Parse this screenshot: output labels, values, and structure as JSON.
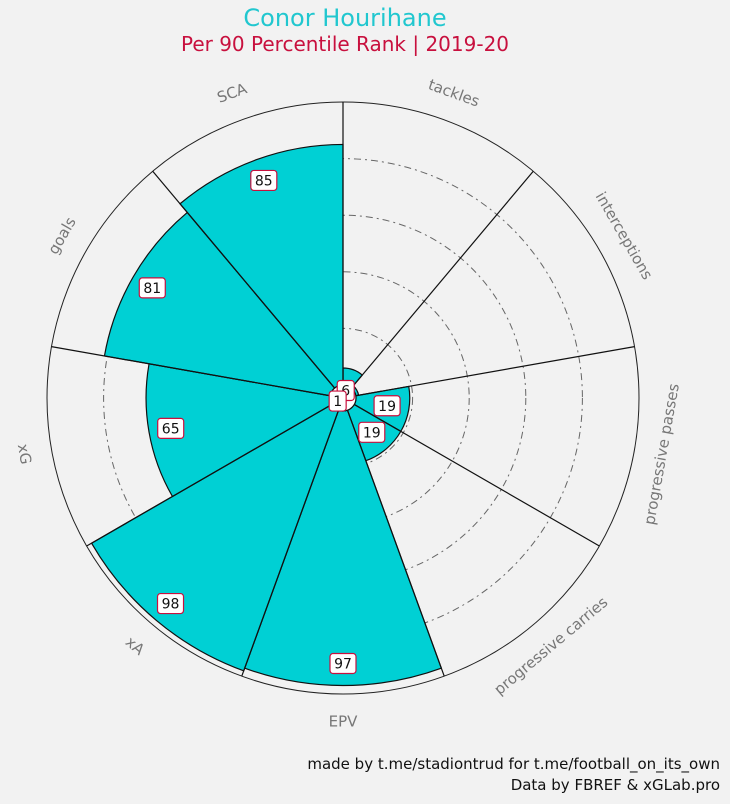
{
  "title": "Conor Hourihane",
  "subtitle": "Per 90 Percentile Rank | 2019-20",
  "credits": {
    "line1": "made by t.me/stadiontrud for t.me/football_on_its_own",
    "line2": "Data by FBREF & xGLab.pro"
  },
  "colors": {
    "bar": "#00d0d4",
    "label_border": "#c8103e",
    "title": "#21c7cf",
    "subtitle": "#c8103e",
    "background": "#f2f2f2"
  },
  "chart_data": {
    "type": "polar-bar",
    "rlim": [
      0,
      100
    ],
    "grid": true,
    "categories": [
      "tackles",
      "interceptions",
      "progressive passes",
      "progressive carries",
      "EPV",
      "xA",
      "xG",
      "goals",
      "SCA"
    ],
    "values": [
      6,
      1,
      19,
      19,
      97,
      98,
      65,
      81,
      85
    ]
  }
}
